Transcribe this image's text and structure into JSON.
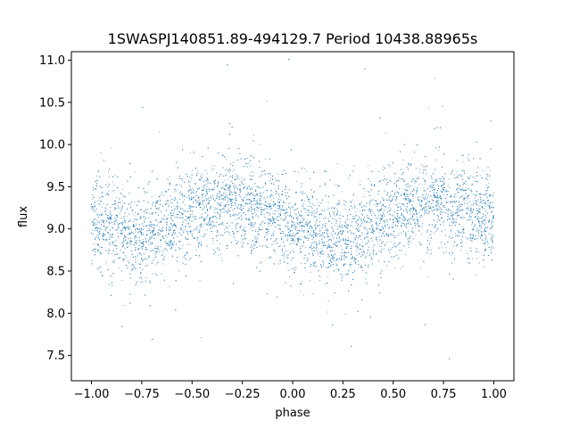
{
  "chart_data": {
    "type": "scatter",
    "title": "1SWASPJ140851.89-494129.7 Period 10438.88965s",
    "xlabel": "phase",
    "ylabel": "flux",
    "xlim": [
      -1.1,
      1.1
    ],
    "ylim": [
      7.2,
      11.1
    ],
    "xticks": [
      "−1.00",
      "−0.75",
      "−0.50",
      "−0.25",
      "0.00",
      "0.25",
      "0.50",
      "0.75",
      "1.00"
    ],
    "xtick_values": [
      -1.0,
      -0.75,
      -0.5,
      -0.25,
      0.0,
      0.25,
      0.5,
      0.75,
      1.0
    ],
    "yticks": [
      "7.5",
      "8.0",
      "8.5",
      "9.0",
      "9.5",
      "10.0",
      "10.5",
      "11.0"
    ],
    "ytick_values": [
      7.5,
      8.0,
      8.5,
      9.0,
      9.5,
      10.0,
      10.5,
      11.0
    ],
    "point_color": "#1f77b4",
    "grid": false,
    "series": [
      {
        "phase": [
          -1.0,
          -0.9,
          -0.8,
          -0.75,
          -0.7,
          -0.6,
          -0.5,
          -0.4,
          -0.3,
          -0.25,
          -0.2,
          -0.1,
          0.0,
          0.1,
          0.2,
          0.25,
          0.3,
          0.4,
          0.5,
          0.6,
          0.7,
          0.75,
          0.8,
          0.9,
          1.0
        ],
        "flux": [
          9.1,
          9.0,
          8.9,
          8.88,
          8.95,
          9.1,
          9.2,
          9.27,
          9.3,
          9.3,
          9.25,
          9.15,
          9.05,
          8.95,
          8.87,
          8.85,
          8.9,
          9.05,
          9.2,
          9.27,
          9.3,
          9.3,
          9.25,
          9.18,
          9.1
        ]
      }
    ]
  }
}
